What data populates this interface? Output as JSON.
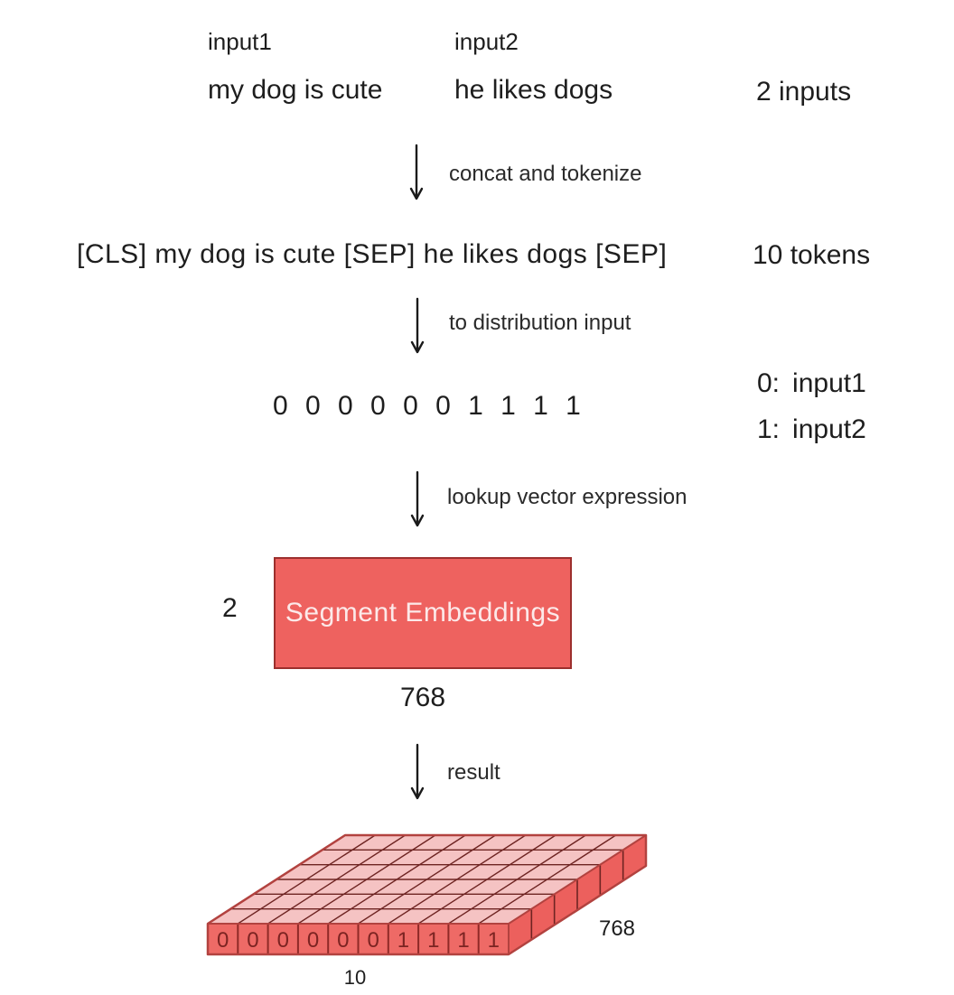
{
  "colors": {
    "accent_red": "#ee625f",
    "box_border": "#9c2f2d",
    "box_text": "#fce9e9",
    "tensor_top_fill": "#f5c3c3",
    "tensor_front_fill": "#ee6a66",
    "tensor_side_fill": "#ec605d",
    "tensor_grid_line": "#6e2422",
    "tensor_outline": "#b2423f",
    "tensor_cell_border": "#8f2a27",
    "tensor_cell_text": "#7c2422",
    "text": "#1e1e1e"
  },
  "inputs_row": {
    "input1_label": "input1",
    "input2_label": "input2",
    "sentence1": "my dog is cute",
    "sentence2": "he likes dogs",
    "count_note": "2 inputs"
  },
  "steps": [
    {
      "label": "concat and tokenize"
    },
    {
      "label": "to distribution input"
    },
    {
      "label": "lookup vector expression"
    },
    {
      "label": "result"
    }
  ],
  "tokenized_row": {
    "text": "[CLS] my dog is cute [SEP] he likes dogs [SEP]",
    "count_note": "10 tokens"
  },
  "segment_ids_row": {
    "sequence": "0 0 0 0 0 0 1 1 1 1",
    "legend": [
      {
        "key": "0:",
        "name": "input1"
      },
      {
        "key": "1:",
        "name": "input2"
      }
    ]
  },
  "embedding_box": {
    "label": "Segment Embeddings",
    "num_rows": "2",
    "num_cols": "768"
  },
  "tensor": {
    "cell_values": [
      "0",
      "0",
      "0",
      "0",
      "0",
      "0",
      "1",
      "1",
      "1",
      "1"
    ],
    "depth_rows": 6,
    "depth_label": "768",
    "width_label": "10"
  }
}
